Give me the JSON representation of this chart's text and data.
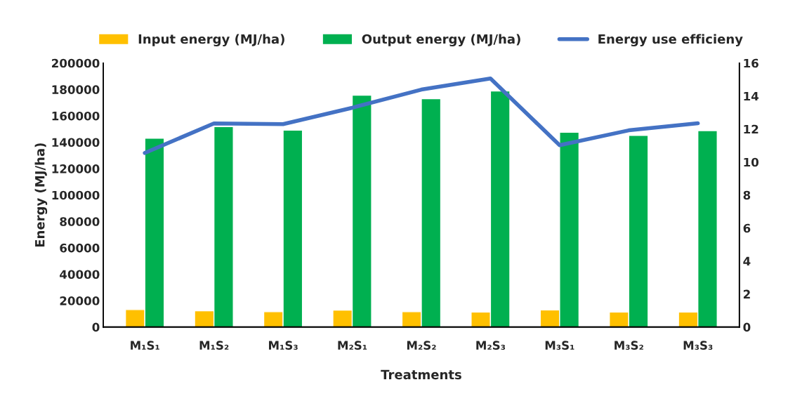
{
  "chart_data": {
    "type": "bar",
    "categories": [
      "M₁S₁",
      "M₁S₂",
      "M₁S₃",
      "M₂S₁",
      "M₂S₂",
      "M₂S₃",
      "M₃S₁",
      "M₃S₂",
      "M₃S₃"
    ],
    "series": [
      {
        "name": "Input energy (MJ/ha)",
        "color": "#ffc000",
        "values": [
          13200,
          12300,
          11600,
          12800,
          11600,
          11400,
          12900,
          11400,
          11400
        ]
      },
      {
        "name": "Output energy (MJ/ha)",
        "color": "#00b050",
        "values": [
          143000,
          151800,
          149200,
          175600,
          173000,
          178800,
          147600,
          145200,
          148800
        ]
      },
      {
        "name": "Energy use efficieny",
        "type": "line",
        "axis": "y2",
        "color": "#4472c4",
        "values": [
          10.55,
          12.34,
          12.3,
          13.29,
          14.39,
          15.06,
          11.02,
          11.92,
          12.35
        ]
      }
    ],
    "xlabel": "Treatments",
    "ylabel": "Energy (MJ/ha)",
    "ylim": [
      0,
      200000
    ],
    "yticks": [
      0,
      20000,
      40000,
      60000,
      80000,
      100000,
      120000,
      140000,
      160000,
      180000,
      200000
    ],
    "y2lim": [
      0,
      16
    ],
    "y2ticks": [
      0,
      2,
      4,
      6,
      8,
      10,
      12,
      14,
      16
    ],
    "grid": false,
    "legend": "top"
  }
}
